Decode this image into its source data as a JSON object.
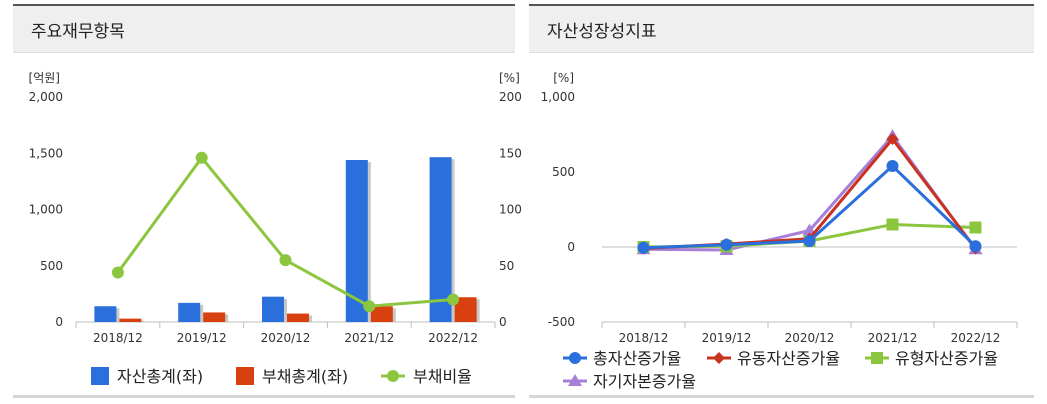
{
  "chart_data": [
    {
      "type": "bar",
      "title": "주요재무항목",
      "categories": [
        "2018/12",
        "2019/12",
        "2020/12",
        "2021/12",
        "2022/12"
      ],
      "left_unit": "[억원]",
      "right_unit": "[%]",
      "y_left_ticks": [
        "2,000",
        "1,500",
        "1,000",
        "500",
        "0"
      ],
      "y_right_ticks": [
        "200",
        "150",
        "100",
        "50",
        "0"
      ],
      "ylim_left": [
        0,
        2000
      ],
      "ylim_right": [
        0,
        200
      ],
      "series": [
        {
          "name": "자산총계(좌)",
          "kind": "bar",
          "axis": "left",
          "color": "#2a6fdb",
          "values": [
            140,
            170,
            225,
            1440,
            1465
          ]
        },
        {
          "name": "부채총계(좌)",
          "kind": "bar",
          "axis": "left",
          "color": "#d9400f",
          "values": [
            30,
            85,
            75,
            140,
            220
          ]
        },
        {
          "name": "부채비율",
          "kind": "line",
          "axis": "right",
          "color": "#8cc63f",
          "values": [
            44,
            146,
            55,
            14,
            20
          ]
        }
      ]
    },
    {
      "type": "line",
      "title": "자산성장성지표",
      "categories": [
        "2018/12",
        "2019/12",
        "2020/12",
        "2021/12",
        "2022/12"
      ],
      "left_unit": "[%]",
      "y_left_ticks": [
        "1,000",
        "500",
        "0",
        "-500"
      ],
      "ylim_left": [
        -500,
        1000
      ],
      "series": [
        {
          "name": "총자산증가율",
          "color": "#2a6fdb",
          "marker": "circle",
          "values": [
            -5,
            15,
            40,
            540,
            5
          ]
        },
        {
          "name": "유동자산증가율",
          "color": "#c8321e",
          "marker": "diamond",
          "values": [
            -10,
            20,
            55,
            720,
            -10
          ]
        },
        {
          "name": "유형자산증가율",
          "color": "#8cc63f",
          "marker": "square",
          "values": [
            0,
            5,
            40,
            150,
            130
          ]
        },
        {
          "name": "자기자본증가율",
          "color": "#a77ed8",
          "marker": "triangle",
          "values": [
            -15,
            -20,
            110,
            740,
            -15
          ]
        }
      ]
    }
  ]
}
